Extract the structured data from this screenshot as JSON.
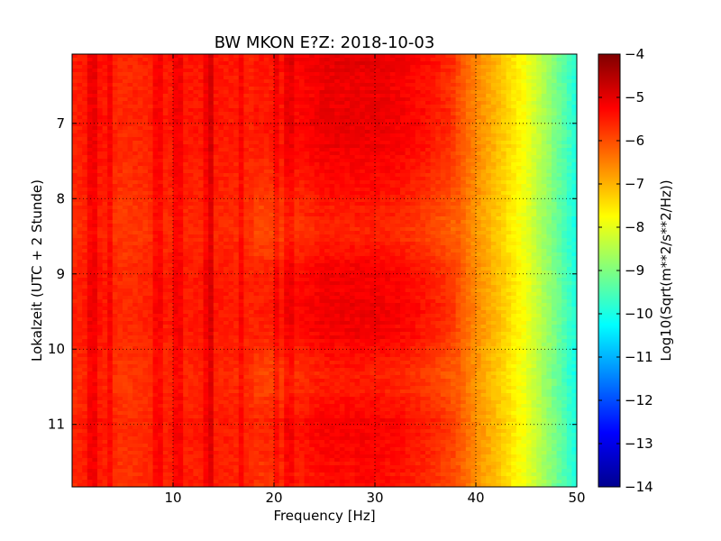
{
  "chart_data": {
    "type": "heatmap",
    "title": "BW MKON E?Z: 2018-10-03",
    "xlabel": "Frequency [Hz]",
    "ylabel": "Lokalzeit (UTC + 2 Stunde)",
    "xlim": [
      0,
      50
    ],
    "ylim": [
      6.08,
      11.83
    ],
    "y_inverted": true,
    "xticks": [
      10,
      20,
      30,
      40,
      50
    ],
    "xtick_labels": [
      "10",
      "20",
      "30",
      "40",
      "50"
    ],
    "yticks": [
      7,
      8,
      9,
      10,
      11
    ],
    "ytick_labels": [
      "7",
      "8",
      "9",
      "10",
      "11"
    ],
    "grid": true,
    "colormap": "jet",
    "colorbar": {
      "label": "Log10(Sqrt(m**2/s**2/Hz))",
      "range": [
        -14,
        -4
      ],
      "ticks": [
        -4,
        -5,
        -6,
        -7,
        -8,
        -9,
        -10,
        -11,
        -12,
        -13,
        -14
      ],
      "tick_labels": [
        "−4",
        "−5",
        "−6",
        "−7",
        "−8",
        "−9",
        "−10",
        "−11",
        "−12",
        "−13",
        "−14"
      ]
    },
    "frequency_profile": {
      "frequency_hz": [
        0,
        2.5,
        5,
        7.5,
        10,
        12.5,
        15,
        17.5,
        20,
        22.5,
        25,
        27.5,
        30,
        32.5,
        35,
        37.5,
        40,
        42.5,
        45,
        47.5,
        50
      ],
      "level": [
        -5.6,
        -5.4,
        -5.7,
        -5.6,
        -5.5,
        -5.5,
        -5.5,
        -5.6,
        -5.6,
        -5.4,
        -5.2,
        -5.2,
        -5.2,
        -5.3,
        -5.5,
        -5.8,
        -6.6,
        -7.2,
        -7.9,
        -8.9,
        -10.0
      ]
    },
    "quiet_period_levels": {
      "times": [
        6.1,
        6.5,
        6.9,
        7.3,
        7.8,
        8.0,
        8.5,
        8.9,
        9.3,
        9.8,
        10.3,
        10.6,
        11.0,
        11.5,
        11.83
      ],
      "offsets": [
        0.2,
        0.1,
        0.15,
        0.1,
        -0.1,
        -0.25,
        -0.35,
        0.0,
        0.1,
        0.05,
        -0.3,
        -0.25,
        0.05,
        -0.1,
        -0.15
      ]
    },
    "spectral_lines_hz": [
      1.6,
      2.3,
      3.6,
      8.3,
      8.8,
      10.5,
      13.5,
      13.7,
      16.8,
      20.2,
      21.5
    ]
  }
}
